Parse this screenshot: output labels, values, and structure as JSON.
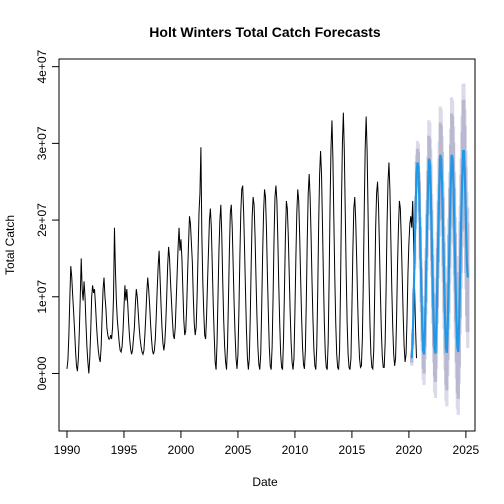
{
  "chart_data": {
    "type": "line",
    "title": "Holt Winters Total Catch Forecasts",
    "xlabel": "Date",
    "ylabel": "Total Catch",
    "xlim": [
      1989.3,
      2025.8
    ],
    "ylim": [
      -7500000,
      41000000
    ],
    "x_ticks": [
      1990,
      1995,
      2000,
      2005,
      2010,
      2015,
      2020,
      2025
    ],
    "x_tick_labels": [
      "1990",
      "1995",
      "2000",
      "2005",
      "2010",
      "2015",
      "2020",
      "2025"
    ],
    "y_ticks": [
      0,
      10000000,
      20000000,
      30000000,
      40000000
    ],
    "y_tick_labels": [
      "0e+00",
      "1e+07",
      "2e+07",
      "3e+07",
      "4e+07"
    ],
    "grid": false,
    "colors": {
      "observed": "#000000",
      "forecast": "#2297E6",
      "interval_80": "#B8B8D0",
      "interval_95": "#DADAE8"
    },
    "series": [
      {
        "role": "observed",
        "x_start": 1990.0,
        "x_step": 0.0833333,
        "values": [
          600000.0,
          1800000.0,
          5000000.0,
          9800000.0,
          14000000.0,
          12600000.0,
          10200000.0,
          8000000.0,
          5600000.0,
          3000000.0,
          1000000.0,
          300000.0,
          2000000.0,
          5500000.0,
          10000000.0,
          15000000.0,
          11000000.0,
          9500000.0,
          12000000.0,
          10000000.0,
          6500000.0,
          3500000.0,
          1500000.0,
          0.0,
          2000000.0,
          5500000.0,
          10000000.0,
          11500000.0,
          10500000.0,
          11000000.0,
          9000000.0,
          6500000.0,
          4500000.0,
          3000000.0,
          2000000.0,
          1500000.0,
          3500000.0,
          7500000.0,
          11000000.0,
          12500000.0,
          10000000.0,
          8500000.0,
          6000000.0,
          5000000.0,
          4500000.0,
          4500000.0,
          5000000.0,
          4500000.0,
          6000000.0,
          10000000.0,
          19000000.0,
          13500000.0,
          9500000.0,
          7000000.0,
          5500000.0,
          4000000.0,
          3000000.0,
          2800000.0,
          3500000.0,
          5500000.0,
          8500000.0,
          11500000.0,
          9500000.0,
          11000000.0,
          9000000.0,
          6500000.0,
          4500000.0,
          3200000.0,
          2500000.0,
          3000000.0,
          4500000.0,
          6000000.0,
          9000000.0,
          11000000.0,
          10000000.0,
          8000000.0,
          6000000.0,
          4500000.0,
          3500000.0,
          2800000.0,
          2500000.0,
          3000000.0,
          5000000.0,
          7500000.0,
          10500000.0,
          12500000.0,
          11000000.0,
          9000000.0,
          6500000.0,
          4500000.0,
          3000000.0,
          2500000.0,
          3000000.0,
          4500000.0,
          7500000.0,
          11000000.0,
          14000000.0,
          16000000.0,
          12500000.0,
          9000000.0,
          6000000.0,
          4000000.0,
          3000000.0,
          4000000.0,
          6500000.0,
          10000000.0,
          14000000.0,
          16500000.0,
          15000000.0,
          12000000.0,
          9500000.0,
          7000000.0,
          5000000.0,
          4500000.0,
          6000000.0,
          9500000.0,
          13000000.0,
          16500000.0,
          19000000.0,
          16000000.0,
          17500000.0,
          15000000.0,
          11000000.0,
          7000000.0,
          5000000.0,
          5500000.0,
          8500000.0,
          13000000.0,
          17000000.0,
          20500000.0,
          19500000.0,
          17000000.0,
          14500000.0,
          10000000.0,
          6500000.0,
          5000000.0,
          6000000.0,
          10000000.0,
          15500000.0,
          21000000.0,
          23500000.0,
          29500000.0,
          18000000.0,
          12000000.0,
          8000000.0,
          5000000.0,
          4500000.0,
          7500000.0,
          12000000.0,
          16000000.0,
          20000000.0,
          21500000.0,
          19000000.0,
          14000000.0,
          9000000.0,
          5000000.0,
          1500000.0,
          500000.0,
          4000000.0,
          10000000.0,
          16000000.0,
          20000000.0,
          22000000.0,
          18000000.0,
          12000000.0,
          7000000.0,
          3500000.0,
          1500000.0,
          500000.0,
          3500000.0,
          9500000.0,
          16000000.0,
          21000000.0,
          22000000.0,
          19000000.0,
          14000000.0,
          9000000.0,
          5000000.0,
          2000000.0,
          600000.0,
          2500000.0,
          8000000.0,
          15000000.0,
          21000000.0,
          24000000.0,
          24500000.0,
          21000000.0,
          16000000.0,
          10500000.0,
          5500000.0,
          2000000.0,
          500000.0,
          2000000.0,
          7500000.0,
          14500000.0,
          20500000.0,
          23000000.0,
          22000000.0,
          18000000.0,
          12500000.0,
          7500000.0,
          3500000.0,
          1200000.0,
          500000.0,
          2500000.0,
          8500000.0,
          15500000.0,
          21000000.0,
          24000000.0,
          23000000.0,
          19000000.0,
          13000000.0,
          8000000.0,
          3500000.0,
          1000000.0,
          500000.0,
          3500000.0,
          10000000.0,
          17500000.0,
          23000000.0,
          24500000.0,
          22500000.0,
          17500000.0,
          11500000.0,
          6500000.0,
          2500000.0,
          800000.0,
          500000.0,
          4500000.0,
          11000000.0,
          18000000.0,
          22500000.0,
          21500000.0,
          18000000.0,
          13000000.0,
          8000000.0,
          4000000.0,
          1500000.0,
          500000.0,
          2000000.0,
          8000000.0,
          15000000.0,
          21000000.0,
          24000000.0,
          22500000.0,
          18000000.0,
          12500000.0,
          7500000.0,
          3500000.0,
          1200000.0,
          600000.0,
          3000000.0,
          9500000.0,
          17500000.0,
          23500000.0,
          26000000.0,
          23000000.0,
          18000000.0,
          12000000.0,
          7000000.0,
          3000000.0,
          1000000.0,
          500000.0,
          3500000.0,
          10500000.0,
          19500000.0,
          26000000.0,
          29000000.0,
          26000000.0,
          19500000.0,
          12500000.0,
          6500000.0,
          2500000.0,
          800000.0,
          500000.0,
          4000000.0,
          12000000.0,
          22000000.0,
          29500000.0,
          33000000.0,
          28000000.0,
          20000000.0,
          12500000.0,
          6500000.0,
          2500000.0,
          800000.0,
          500000.0,
          3000000.0,
          11000000.0,
          22000000.0,
          30000000.0,
          34000000.0,
          29000000.0,
          21000000.0,
          13000000.0,
          6500000.0,
          2500000.0,
          800000.0,
          500000.0,
          2000000.0,
          8500000.0,
          16000000.0,
          21500000.0,
          23000000.0,
          20000000.0,
          15000000.0,
          9500000.0,
          5000000.0,
          2000000.0,
          800000.0,
          1000000.0,
          4500000.0,
          12000000.0,
          21500000.0,
          29500000.0,
          33500000.0,
          29000000.0,
          21000000.0,
          12500000.0,
          6500000.0,
          2500000.0,
          800000.0,
          600000.0,
          3000000.0,
          10500000.0,
          19000000.0,
          23500000.0,
          25000000.0,
          22000000.0,
          16500000.0,
          10500000.0,
          5500000.0,
          2200000.0,
          800000.0,
          800000.0,
          4000000.0,
          11000000.0,
          19500000.0,
          25000000.0,
          27500000.0,
          24000000.0,
          17500000.0,
          11000000.0,
          6000000.0,
          2500000.0,
          1000000.0,
          2000000.0,
          7000000.0,
          14000000.0,
          19000000.0,
          22500000.0,
          21500000.0,
          17500000.0,
          12500000.0,
          7500000.0,
          3500000.0,
          1500000.0,
          2500000.0,
          7000000.0,
          13000000.0,
          17000000.0,
          19500000.0,
          20500000.0,
          19000000.0,
          22500000.0,
          17000000.0,
          11000000.0,
          6000000.0,
          2000000.0
        ]
      },
      {
        "role": "forecast",
        "x_start": 2020.25,
        "x_step": 0.0833333,
        "values": [
          2000000.0,
          4500000.0,
          9500000.0,
          15500000.0,
          21000000.0,
          26000000.0,
          27500000.0,
          27000000.0,
          23000000.0,
          17000000.0,
          11500000.0,
          6500000.0,
          3000000.0,
          2500000.0,
          6000000.0,
          12000000.0,
          18000000.0,
          23500000.0,
          28000000.0,
          27500000.0,
          24000000.0,
          18000000.0,
          12000000.0,
          7000000.0,
          3200000.0,
          2600000.0,
          6500000.0,
          12500000.0,
          18500000.0,
          24000000.0,
          28500000.0,
          28000000.0,
          24500000.0,
          18500000.0,
          12500000.0,
          7200000.0,
          3300000.0,
          2700000.0,
          6800000.0,
          13000000.0,
          19000000.0,
          24500000.0,
          28500000.0,
          28000000.0,
          24500000.0,
          18500000.0,
          12500000.0,
          7300000.0,
          3400000.0,
          2800000.0,
          7000000.0,
          13500000.0,
          19500000.0,
          25000000.0,
          29000000.0,
          29000000.0,
          25500000.0,
          20000000.0,
          14500000.0,
          12500000.0
        ],
        "spread_80": [
          600000.0,
          800000.0,
          1000000.0,
          1200000.0,
          1400000.0,
          1600000.0,
          1800000.0,
          1900000.0,
          2000000.0,
          2100000.0,
          2200000.0,
          2300000.0,
          2400000.0,
          2500000.0,
          2600000.0,
          2700000.0,
          2800000.0,
          2900000.0,
          3000000.0,
          3100000.0,
          3200000.0,
          3300000.0,
          3400000.0,
          3500000.0,
          3600000.0,
          3700000.0,
          3800000.0,
          3900000.0,
          4000000.0,
          4100000.0,
          4200000.0,
          4300000.0,
          4400000.0,
          4500000.0,
          4600000.0,
          4700000.0,
          4800000.0,
          4900000.0,
          5000000.0,
          5100000.0,
          5200000.0,
          5300000.0,
          5400000.0,
          5500000.0,
          5600000.0,
          5700000.0,
          5800000.0,
          5900000.0,
          6000000.0,
          6100000.0,
          6200000.0,
          6300000.0,
          6400000.0,
          6500000.0,
          6600000.0,
          6700000.0,
          6800000.0,
          6900000.0,
          7000000.0,
          7100000.0
        ],
        "spread_95": [
          1000000.0,
          1300000.0,
          1600000.0,
          1900000.0,
          2200000.0,
          2500000.0,
          2800000.0,
          3000000.0,
          3200000.0,
          3400000.0,
          3500000.0,
          3600000.0,
          3800000.0,
          4000000.0,
          4200000.0,
          4400000.0,
          4600000.0,
          4800000.0,
          5000000.0,
          5200000.0,
          5300000.0,
          5400000.0,
          5500000.0,
          5600000.0,
          5700000.0,
          5800000.0,
          5900000.0,
          6000000.0,
          6100000.0,
          6200000.0,
          6300000.0,
          6400000.0,
          6500000.0,
          6600000.0,
          6700000.0,
          6800000.0,
          6900000.0,
          7000000.0,
          7100000.0,
          7200000.0,
          7300000.0,
          7400000.0,
          7500000.0,
          7600000.0,
          7700000.0,
          7800000.0,
          7900000.0,
          8000000.0,
          8100000.0,
          8200000.0,
          8300000.0,
          8400000.0,
          8500000.0,
          8600000.0,
          8700000.0,
          8800000.0,
          8900000.0,
          9000000.0,
          9100000.0,
          9200000.0
        ]
      }
    ]
  }
}
